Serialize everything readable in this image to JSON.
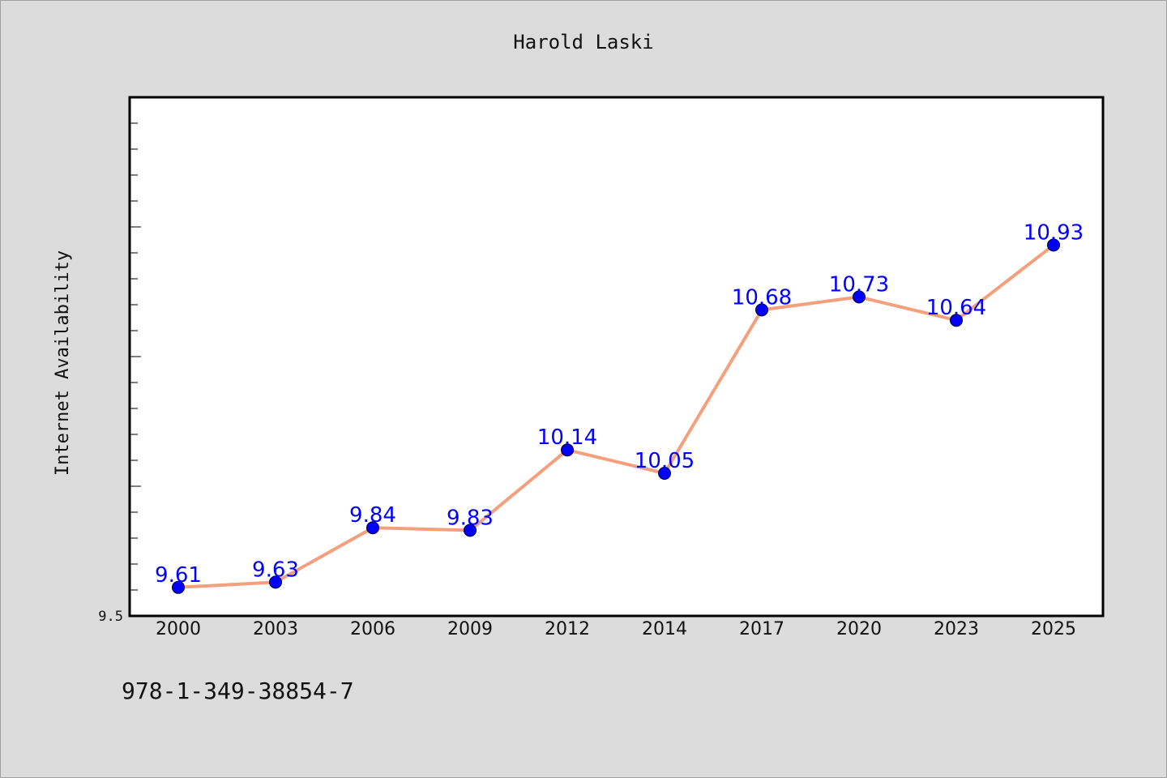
{
  "title": "Harold Laski",
  "footer_text": "978-1-349-38854-7",
  "chart_data": {
    "type": "line",
    "title": "Harold Laski",
    "xlabel": "",
    "ylabel": "Internet Availability",
    "categories": [
      "2000",
      "2003",
      "2006",
      "2009",
      "2012",
      "2014",
      "2017",
      "2020",
      "2023",
      "2025"
    ],
    "series": [
      {
        "values": [
          9.61,
          9.63,
          9.84,
          9.83,
          10.14,
          10.05,
          10.68,
          10.73,
          10.64,
          10.93
        ],
        "value_labels": [
          "9.61",
          "9.63",
          "9.84",
          "9.83",
          "10.14",
          "10.05",
          "10.68",
          "10.73",
          "10.64",
          "10.93"
        ],
        "line_color": "#f4a07c",
        "marker_color": "#0000ff",
        "label_color": "#0000ff"
      }
    ],
    "ylim": [
      9.5,
      11.5
    ],
    "yticks_labeled": [
      "9.5"
    ],
    "grid": false,
    "legend": "none",
    "colors": {
      "background": "#dcdcdc",
      "plot_background": "#ffffff",
      "line": "#f4a07c",
      "markers": "#0000ff",
      "value_labels": "#0000ff"
    }
  }
}
